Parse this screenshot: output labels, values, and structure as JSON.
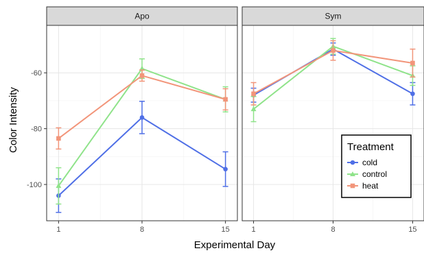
{
  "chart_data": {
    "type": "line",
    "xlabel": "Experimental Day",
    "ylabel": "Color Intensity",
    "x": [
      1,
      8,
      15
    ],
    "x_tick_labels": [
      "1",
      "8",
      "15"
    ],
    "y_ticks": [
      -60,
      -80,
      -100
    ],
    "y_tick_labels": [
      "-60",
      "-80",
      "-100"
    ],
    "ylim": [
      -113,
      -43
    ],
    "grid": true,
    "legend": {
      "title": "Treatment",
      "placement": "bottom-right",
      "entries": [
        "cold",
        "control",
        "heat"
      ]
    },
    "colors": {
      "cold": "#4f6fe6",
      "control": "#8fe38a",
      "heat": "#f2957a"
    },
    "panels": [
      {
        "title": "Apo",
        "series": [
          {
            "name": "cold",
            "values": [
              -104,
              -76,
              -94.5
            ],
            "error": [
              6,
              5.8,
              6.2
            ]
          },
          {
            "name": "control",
            "values": [
              -100.5,
              -58.5,
              -69.5
            ],
            "error": [
              6.5,
              3.5,
              4.5
            ]
          },
          {
            "name": "heat",
            "values": [
              -83.5,
              -61,
              -69.5
            ],
            "error": [
              3.8,
              2,
              3.8
            ]
          }
        ]
      },
      {
        "title": "Sym",
        "series": [
          {
            "name": "cold",
            "values": [
              -68,
              -51.5,
              -67.5
            ],
            "error": [
              2.5,
              2.2,
              4
            ]
          },
          {
            "name": "control",
            "values": [
              -73,
              -50.5,
              -61
            ],
            "error": [
              4.5,
              2.8,
              3.5
            ]
          },
          {
            "name": "heat",
            "values": [
              -67.5,
              -52,
              -56.5
            ],
            "error": [
              4,
              3.5,
              5
            ]
          }
        ]
      }
    ]
  }
}
